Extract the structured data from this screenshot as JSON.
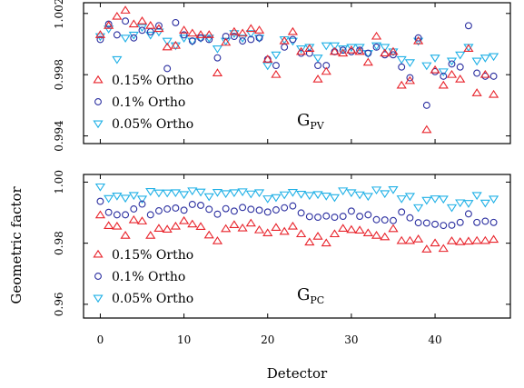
{
  "chart_data": {
    "type": "scatter",
    "xlabel": "Detector",
    "ylabel": "Geometric factor",
    "xlim": [
      -2,
      49
    ],
    "xticks": [
      "0",
      "10",
      "20",
      "30",
      "40"
    ],
    "legend": [
      "0.15% Ortho",
      "0.1% Ortho",
      "0.05% Ortho"
    ],
    "series_colors": [
      "#e8232b",
      "#2b2fa0",
      "#1fb0e6"
    ],
    "panels": [
      {
        "label_main": "G",
        "label_sub": "PV",
        "ylim": [
          0.9935,
          1.0027
        ],
        "yticks": [
          "0.994",
          "0.998",
          "1.002"
        ],
        "legend_placement": "bottom-left",
        "x": [
          0,
          1,
          2,
          3,
          4,
          5,
          6,
          7,
          8,
          9,
          10,
          11,
          12,
          13,
          14,
          15,
          16,
          17,
          18,
          19,
          20,
          21,
          22,
          23,
          24,
          25,
          26,
          27,
          28,
          29,
          30,
          31,
          32,
          33,
          34,
          35,
          36,
          37,
          38,
          39,
          40,
          41,
          42,
          43,
          44,
          45,
          46,
          47
        ],
        "series": [
          {
            "marker": "triangle-up",
            "values": [
              1.0006,
              1.0012,
              1.0018,
              1.0022,
              1.0013,
              1.0015,
              1.0012,
              1.001,
              0.9998,
              0.9999,
              1.0009,
              1.0007,
              1.0006,
              1.0006,
              0.9981,
              1.0001,
              1.0008,
              1.0007,
              1.001,
              1.0009,
              0.999,
              0.998,
              1.0002,
              1.0008,
              0.9995,
              0.9997,
              0.9977,
              0.9982,
              0.9995,
              0.9994,
              0.9996,
              0.9995,
              0.9988,
              1.0005,
              0.9994,
              0.9995,
              0.9973,
              0.9976,
              1.0002,
              0.9944,
              0.9983,
              0.9973,
              0.998,
              0.9977,
              0.9997,
              0.9968,
              0.998,
              0.9967
            ]
          },
          {
            "marker": "circle",
            "values": [
              1.0003,
              1.0013,
              1.0006,
              1.0015,
              1.0004,
              1.0009,
              1.0008,
              1.0012,
              0.9984,
              1.0014,
              1.0006,
              1.0002,
              1.0004,
              1.0003,
              0.9991,
              1.0005,
              1.0005,
              1.0002,
              1.0003,
              1.0004,
              0.999,
              0.9986,
              0.9998,
              1.0003,
              0.9994,
              0.9994,
              0.9986,
              0.9986,
              0.9995,
              0.9996,
              0.9995,
              0.9996,
              0.9994,
              0.9998,
              0.9993,
              0.9993,
              0.9985,
              0.9978,
              1.0004,
              0.996,
              0.9982,
              0.9979,
              0.9987,
              0.9985,
              1.0012,
              0.9981,
              0.9979,
              0.9979
            ]
          },
          {
            "marker": "triangle-down",
            "values": [
              1.0005,
              1.001,
              0.999,
              1.0004,
              1.0006,
              1.0011,
              1.0006,
              1.0008,
              1.0002,
              0.9999,
              1.0004,
              1.0002,
              1.0004,
              1.0004,
              0.9997,
              1.0002,
              1.0007,
              1.0004,
              1.0007,
              1.0004,
              0.9986,
              0.9993,
              1.0003,
              1.0002,
              0.9997,
              0.9998,
              0.9991,
              0.9999,
              0.9999,
              0.9997,
              0.9998,
              0.9998,
              0.9994,
              0.9999,
              0.9998,
              0.9995,
              0.999,
              0.9988,
              1.0002,
              0.9986,
              0.9991,
              0.9982,
              0.9989,
              0.9993,
              0.9998,
              0.9989,
              0.9991,
              0.9992
            ]
          }
        ]
      },
      {
        "label_main": "G",
        "label_sub": "PC",
        "ylim": [
          0.9555,
          1.0025
        ],
        "yticks": [
          "0.96",
          "0.98",
          "1.00"
        ],
        "legend_placement": "bottom-left",
        "x": [
          0,
          1,
          2,
          3,
          4,
          5,
          6,
          7,
          8,
          9,
          10,
          11,
          12,
          13,
          14,
          15,
          16,
          17,
          18,
          19,
          20,
          21,
          22,
          23,
          24,
          25,
          26,
          27,
          28,
          29,
          30,
          31,
          32,
          33,
          34,
          35,
          36,
          37,
          38,
          39,
          40,
          41,
          42,
          43,
          44,
          45,
          46,
          47
        ],
        "series": [
          {
            "marker": "triangle-up",
            "values": [
              0.9892,
              0.9857,
              0.9855,
              0.9825,
              0.9876,
              0.9872,
              0.9825,
              0.9848,
              0.9845,
              0.9855,
              0.9873,
              0.9862,
              0.9854,
              0.9826,
              0.9807,
              0.9847,
              0.986,
              0.9849,
              0.9865,
              0.9843,
              0.9833,
              0.9851,
              0.9838,
              0.9855,
              0.983,
              0.9803,
              0.9822,
              0.98,
              0.983,
              0.9848,
              0.9844,
              0.9842,
              0.9833,
              0.9825,
              0.982,
              0.9847,
              0.9808,
              0.9808,
              0.9813,
              0.978,
              0.98,
              0.9782,
              0.9807,
              0.9804,
              0.9806,
              0.9808,
              0.9808,
              0.9812
            ]
          },
          {
            "marker": "circle",
            "values": [
              0.9937,
              0.9901,
              0.9893,
              0.9893,
              0.9912,
              0.9928,
              0.9893,
              0.9906,
              0.9912,
              0.9915,
              0.9908,
              0.9927,
              0.9924,
              0.9911,
              0.9895,
              0.9913,
              0.9905,
              0.9917,
              0.9911,
              0.9908,
              0.9902,
              0.9909,
              0.9916,
              0.9922,
              0.9899,
              0.9887,
              0.9885,
              0.9889,
              0.9885,
              0.9888,
              0.9905,
              0.9888,
              0.9893,
              0.9877,
              0.9876,
              0.9874,
              0.9902,
              0.9883,
              0.9867,
              0.9866,
              0.9862,
              0.9858,
              0.9859,
              0.9868,
              0.9896,
              0.9868,
              0.9872,
              0.9868
            ]
          },
          {
            "marker": "triangle-down",
            "values": [
              0.9985,
              0.9947,
              0.9955,
              0.9948,
              0.9957,
              0.9945,
              0.997,
              0.9965,
              0.9965,
              0.9966,
              0.996,
              0.9972,
              0.9968,
              0.9953,
              0.9967,
              0.9963,
              0.9966,
              0.9969,
              0.9962,
              0.9966,
              0.9946,
              0.995,
              0.9959,
              0.9967,
              0.9961,
              0.9957,
              0.996,
              0.9955,
              0.995,
              0.9972,
              0.9966,
              0.9959,
              0.9954,
              0.9975,
              0.9963,
              0.9976,
              0.9946,
              0.9954,
              0.9917,
              0.9941,
              0.9946,
              0.9945,
              0.9917,
              0.9933,
              0.9931,
              0.9957,
              0.9932,
              0.9945
            ]
          }
        ]
      }
    ]
  }
}
